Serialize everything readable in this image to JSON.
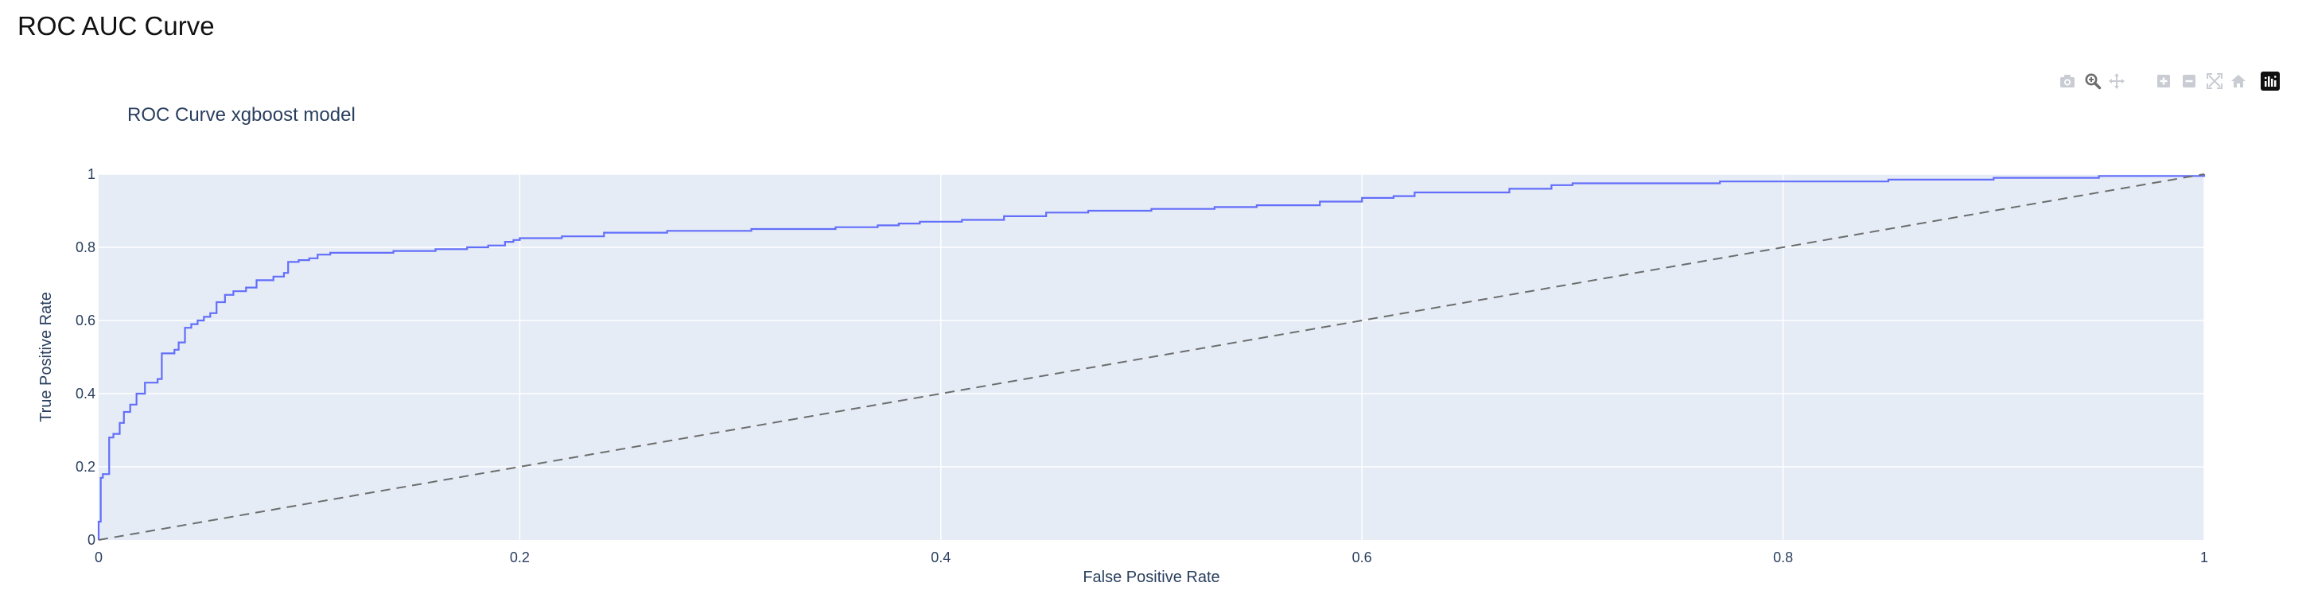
{
  "page": {
    "title": "ROC AUC Curve"
  },
  "modebar": {
    "buttons": [
      {
        "name": "camera-icon",
        "label": "Download plot as a png",
        "active": false
      },
      {
        "name": "zoom-icon",
        "label": "Zoom",
        "active": true
      },
      {
        "name": "pan-icon",
        "label": "Pan",
        "active": false
      },
      {
        "name": "zoom-in-icon",
        "label": "Zoom in",
        "active": false
      },
      {
        "name": "zoom-out-icon",
        "label": "Zoom out",
        "active": false
      },
      {
        "name": "autoscale-icon",
        "label": "Autoscale",
        "active": false
      },
      {
        "name": "home-icon",
        "label": "Reset axes",
        "active": false
      },
      {
        "name": "plotly-logo-icon",
        "label": "Produced with Plotly",
        "active": false
      }
    ],
    "colors": {
      "inactive": "#c9ccd3",
      "active": "#6d6d6d",
      "logo": "#111111"
    }
  },
  "chart_data": {
    "type": "line",
    "title": "ROC Curve xgboost model",
    "xlabel": "False Positive Rate",
    "ylabel": "True Positive Rate",
    "xlim": [
      0,
      1
    ],
    "ylim": [
      0,
      1
    ],
    "xticks": [
      0,
      0.2,
      0.4,
      0.6,
      0.8,
      1
    ],
    "yticks": [
      0,
      0.2,
      0.4,
      0.6,
      0.8,
      1
    ],
    "xtick_labels": [
      "0",
      "0.2",
      "0.4",
      "0.6",
      "0.8",
      "1"
    ],
    "ytick_labels": [
      "0",
      "0.2",
      "0.4",
      "0.6",
      "0.8",
      "1"
    ],
    "grid": true,
    "legend": false,
    "colors": {
      "plot_background": "#e5ecf6",
      "grid": "#ffffff",
      "roc_line": "#636efa",
      "diagonal": "#6d6d6d",
      "text": "#2a3f5f"
    },
    "series": [
      {
        "style": "step",
        "x": [
          0,
          0.001,
          0.002,
          0.005,
          0.007,
          0.01,
          0.012,
          0.015,
          0.018,
          0.022,
          0.028,
          0.03,
          0.036,
          0.038,
          0.041,
          0.044,
          0.047,
          0.05,
          0.053,
          0.056,
          0.06,
          0.064,
          0.07,
          0.075,
          0.083,
          0.088,
          0.09,
          0.095,
          0.1,
          0.104,
          0.11,
          0.14,
          0.16,
          0.175,
          0.185,
          0.193,
          0.197,
          0.2,
          0.22,
          0.24,
          0.27,
          0.31,
          0.35,
          0.37,
          0.38,
          0.39,
          0.41,
          0.43,
          0.45,
          0.47,
          0.5,
          0.53,
          0.55,
          0.58,
          0.6,
          0.615,
          0.625,
          0.67,
          0.69,
          0.7,
          0.77,
          0.85,
          0.9,
          0.95,
          1
        ],
        "y": [
          0.05,
          0.17,
          0.18,
          0.28,
          0.29,
          0.32,
          0.35,
          0.37,
          0.4,
          0.43,
          0.44,
          0.51,
          0.52,
          0.54,
          0.58,
          0.59,
          0.6,
          0.61,
          0.62,
          0.65,
          0.67,
          0.68,
          0.69,
          0.71,
          0.72,
          0.73,
          0.76,
          0.765,
          0.77,
          0.78,
          0.785,
          0.79,
          0.795,
          0.8,
          0.805,
          0.815,
          0.82,
          0.825,
          0.83,
          0.84,
          0.845,
          0.85,
          0.855,
          0.86,
          0.865,
          0.87,
          0.875,
          0.885,
          0.895,
          0.9,
          0.905,
          0.91,
          0.915,
          0.925,
          0.935,
          0.94,
          0.95,
          0.96,
          0.97,
          0.975,
          0.98,
          0.985,
          0.99,
          0.995,
          1
        ]
      },
      {
        "style": "dash",
        "x": [
          0,
          1
        ],
        "y": [
          0,
          1
        ]
      }
    ]
  }
}
